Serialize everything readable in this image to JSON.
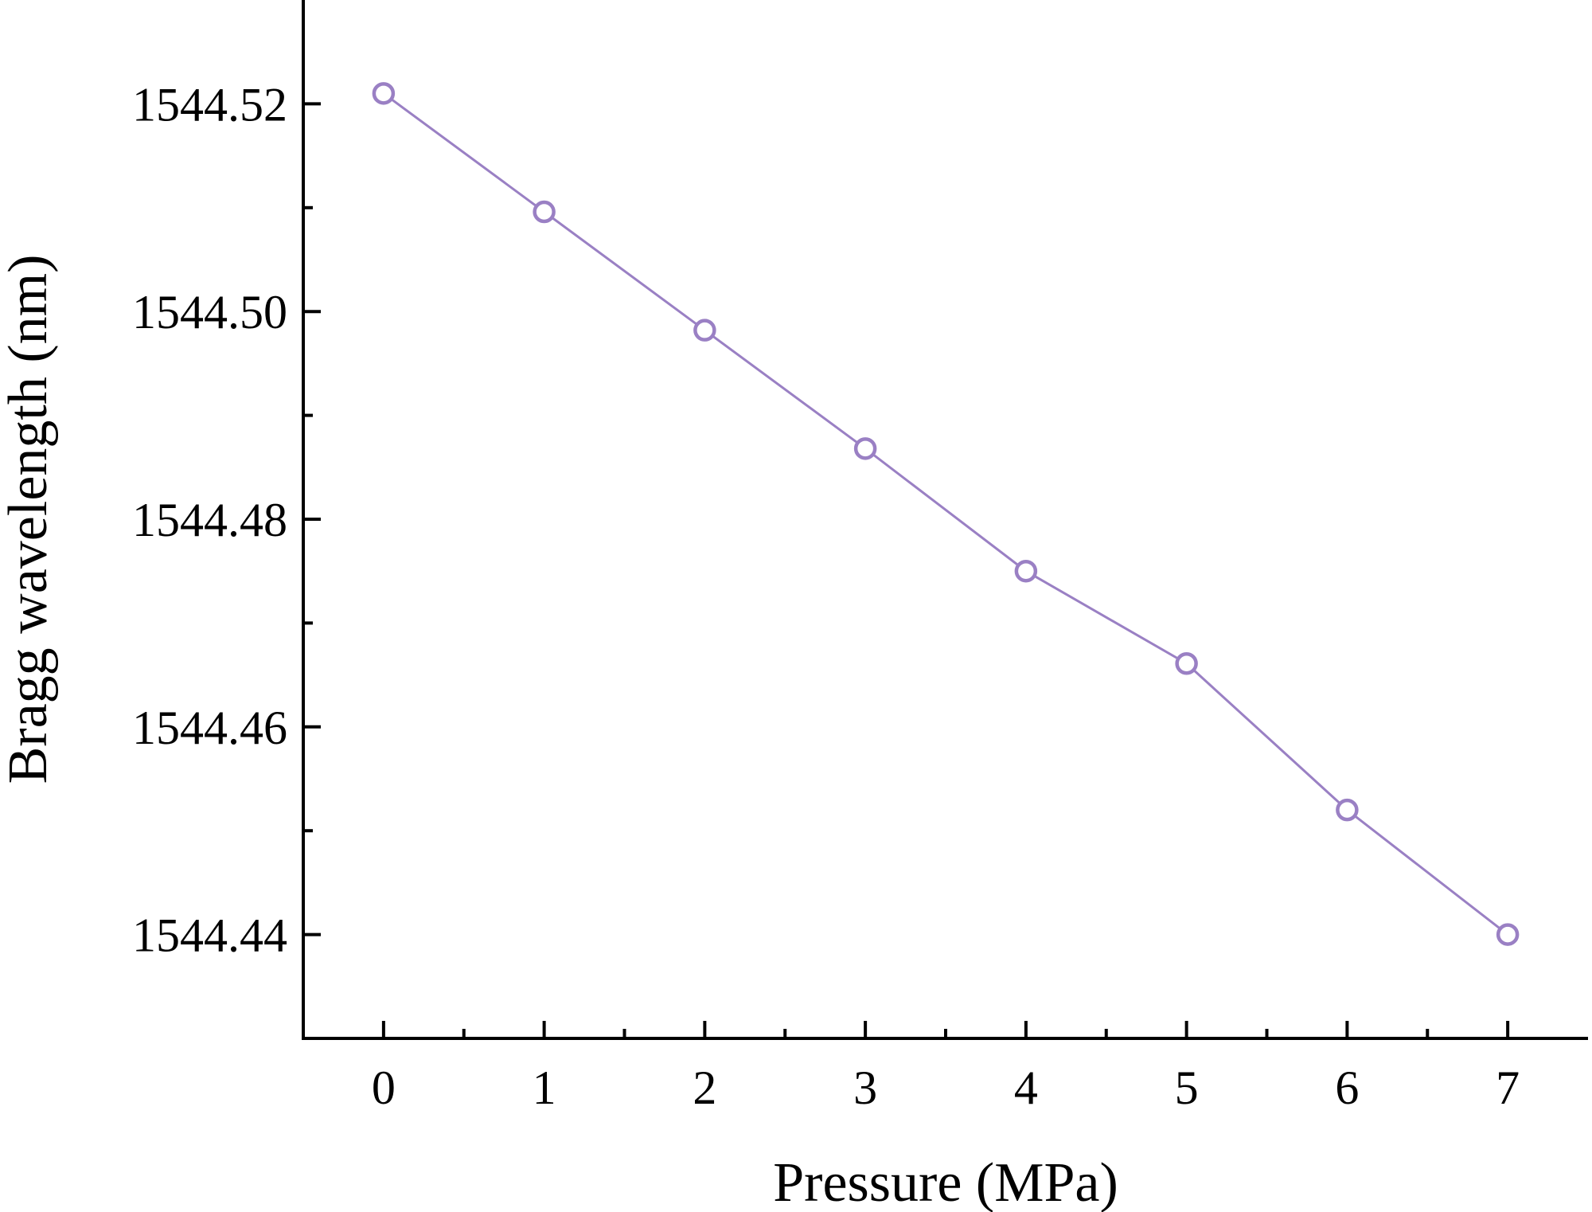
{
  "chart_data": {
    "type": "line",
    "title": "",
    "xlabel": "Pressure (MPa)",
    "ylabel": "Bragg wavelength (nm)",
    "xlim": [
      -0.5,
      7.5
    ],
    "ylim": [
      1544.43,
      1544.53
    ],
    "x_ticks": [
      0,
      1,
      2,
      3,
      4,
      5,
      6,
      7
    ],
    "x_tick_labels": [
      "0",
      "1",
      "2",
      "3",
      "4",
      "5",
      "6",
      "7"
    ],
    "y_ticks": [
      1544.44,
      1544.46,
      1544.48,
      1544.5,
      1544.52
    ],
    "y_tick_labels": [
      "1544.44",
      "1544.46",
      "1544.48",
      "1544.50",
      "1544.52"
    ],
    "grid": false,
    "legend": "none",
    "series": [
      {
        "color": "#9a80c4",
        "marker": "open-circle",
        "x": [
          0,
          1,
          2,
          3,
          4,
          5,
          6,
          7
        ],
        "y": [
          1544.521,
          1544.5096,
          1544.4982,
          1544.4868,
          1544.475,
          1544.4661,
          1544.452,
          1544.44
        ]
      }
    ]
  }
}
